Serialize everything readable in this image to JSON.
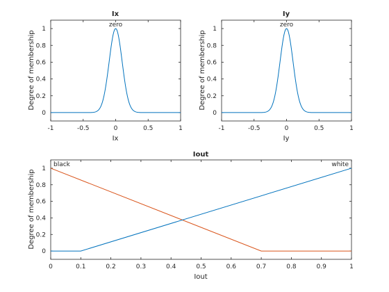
{
  "chart_data": [
    {
      "type": "line",
      "title": "Ix",
      "xlabel": "Ix",
      "ylabel": "Degree of membership",
      "xlim": [
        -1,
        1
      ],
      "ylim": [
        -0.1,
        1.1
      ],
      "xticks": [
        -1,
        -0.5,
        0,
        0.5,
        1
      ],
      "xtick_labels": [
        "-1",
        "-0.5",
        "0",
        "0.5",
        "1"
      ],
      "yticks": [
        0,
        0.2,
        0.4,
        0.6,
        0.8,
        1
      ],
      "ytick_labels": [
        "0",
        "0.2",
        "0.4",
        "0.6",
        "0.8",
        "1"
      ],
      "grid": false,
      "series": [
        {
          "name": "zero",
          "mf": "gaussian",
          "center": 0,
          "sigma": 0.1,
          "color": "#0072bd"
        }
      ]
    },
    {
      "type": "line",
      "title": "Iy",
      "xlabel": "Iy",
      "ylabel": "Degree of membership",
      "xlim": [
        -1,
        1
      ],
      "ylim": [
        -0.1,
        1.1
      ],
      "xticks": [
        -1,
        -0.5,
        0,
        0.5,
        1
      ],
      "xtick_labels": [
        "-1",
        "-0.5",
        "0",
        "0.5",
        "1"
      ],
      "yticks": [
        0,
        0.2,
        0.4,
        0.6,
        0.8,
        1
      ],
      "ytick_labels": [
        "0",
        "0.2",
        "0.4",
        "0.6",
        "0.8",
        "1"
      ],
      "grid": false,
      "series": [
        {
          "name": "zero",
          "mf": "gaussian",
          "center": 0,
          "sigma": 0.1,
          "color": "#0072bd"
        }
      ]
    },
    {
      "type": "line",
      "title": "Iout",
      "xlabel": "Iout",
      "ylabel": "Degree of membership",
      "xlim": [
        0,
        1
      ],
      "ylim": [
        -0.1,
        1.1
      ],
      "xticks": [
        0,
        0.1,
        0.2,
        0.3,
        0.4,
        0.5,
        0.6,
        0.7,
        0.8,
        0.9,
        1
      ],
      "xtick_labels": [
        "0",
        "0.1",
        "0.2",
        "0.3",
        "0.4",
        "0.5",
        "0.6",
        "0.7",
        "0.8",
        "0.9",
        "1"
      ],
      "yticks": [
        0,
        0.2,
        0.4,
        0.6,
        0.8,
        1
      ],
      "ytick_labels": [
        "0",
        "0.2",
        "0.4",
        "0.6",
        "0.8",
        "1"
      ],
      "grid": false,
      "series": [
        {
          "name": "black",
          "x": [
            0,
            0.7,
            1
          ],
          "y": [
            1,
            0,
            0
          ],
          "color": "#d95319"
        },
        {
          "name": "white",
          "x": [
            0,
            0.1,
            1
          ],
          "y": [
            0,
            0,
            1
          ],
          "color": "#0072bd"
        }
      ]
    }
  ]
}
